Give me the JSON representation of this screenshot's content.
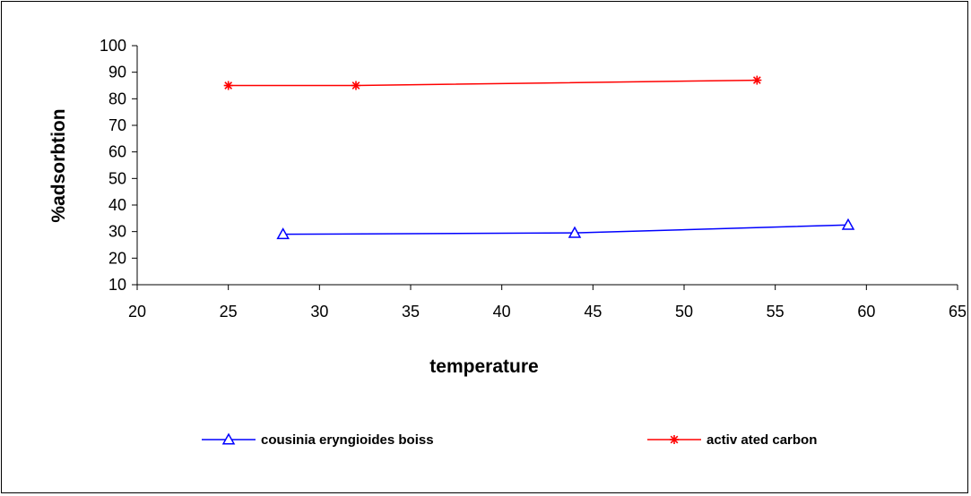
{
  "chart_data": {
    "type": "line",
    "title": "",
    "xlabel": "temperature",
    "ylabel": "%adsorbtion",
    "xlim": [
      20,
      65
    ],
    "ylim": [
      10,
      100
    ],
    "xticks": [
      20,
      25,
      30,
      35,
      40,
      45,
      50,
      55,
      60,
      65
    ],
    "yticks": [
      10,
      20,
      30,
      40,
      50,
      60,
      70,
      80,
      90,
      100
    ],
    "grid": false,
    "legend_position": "bottom",
    "series": [
      {
        "name": "cousinia eryngioides boiss",
        "color": "#0000ff",
        "marker": "triangle",
        "x": [
          28,
          44,
          59
        ],
        "y": [
          29,
          29.5,
          32.5
        ]
      },
      {
        "name": "activ ated carbon",
        "color": "#ff0000",
        "marker": "asterisk",
        "x": [
          25,
          32,
          54
        ],
        "y": [
          85,
          85,
          87
        ]
      }
    ]
  }
}
